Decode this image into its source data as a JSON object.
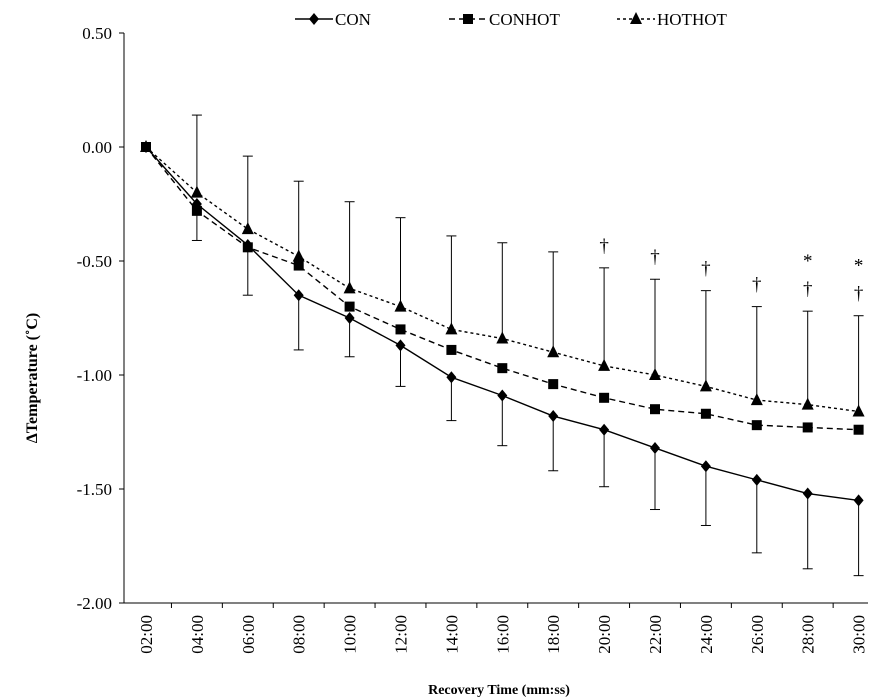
{
  "chart_data": {
    "type": "line",
    "xlabel": "Recovery Time (mm:ss)",
    "ylabel": "ΔTemperature (˚C)",
    "ylim": [
      -2.0,
      0.5
    ],
    "yticks": [
      "0.50",
      "0.00",
      "-0.50",
      "-1.00",
      "-1.50",
      "-2.00"
    ],
    "categories": [
      "02:00",
      "04:00",
      "06:00",
      "08:00",
      "10:00",
      "12:00",
      "14:00",
      "16:00",
      "18:00",
      "20:00",
      "22:00",
      "24:00",
      "26:00",
      "28:00",
      "30:00"
    ],
    "legend_position": "top",
    "series": [
      {
        "name": "CON",
        "marker": "diamond",
        "line": "solid",
        "values": [
          0.0,
          -0.25,
          -0.43,
          -0.65,
          -0.75,
          -0.87,
          -1.01,
          -1.09,
          -1.18,
          -1.24,
          -1.32,
          -1.4,
          -1.46,
          -1.52,
          -1.55
        ],
        "error_lower": [
          null,
          0.16,
          0.22,
          0.24,
          0.17,
          0.18,
          0.19,
          0.22,
          0.24,
          0.25,
          0.27,
          0.26,
          0.32,
          0.33,
          0.33
        ]
      },
      {
        "name": "CONHOT",
        "marker": "square",
        "line": "dashed",
        "values": [
          0.0,
          -0.28,
          -0.44,
          -0.52,
          -0.7,
          -0.8,
          -0.89,
          -0.97,
          -1.04,
          -1.1,
          -1.15,
          -1.17,
          -1.22,
          -1.23,
          -1.24
        ]
      },
      {
        "name": "HOTHOT",
        "marker": "triangle",
        "line": "dotted",
        "values": [
          0.0,
          -0.2,
          -0.36,
          -0.48,
          -0.62,
          -0.7,
          -0.8,
          -0.84,
          -0.9,
          -0.96,
          -1.0,
          -1.05,
          -1.11,
          -1.13,
          -1.16
        ],
        "error_upper": [
          null,
          0.34,
          0.32,
          0.33,
          0.38,
          0.39,
          0.41,
          0.42,
          0.44,
          0.43,
          0.42,
          0.42,
          0.41,
          0.41,
          0.42
        ]
      }
    ],
    "annotations": [
      {
        "category": "20:00",
        "symbols": [
          "†"
        ]
      },
      {
        "category": "22:00",
        "symbols": [
          "†"
        ]
      },
      {
        "category": "24:00",
        "symbols": [
          "†"
        ]
      },
      {
        "category": "26:00",
        "symbols": [
          "†"
        ]
      },
      {
        "category": "28:00",
        "symbols": [
          "*",
          "†"
        ]
      },
      {
        "category": "30:00",
        "symbols": [
          "*",
          "†"
        ]
      }
    ],
    "colors": {
      "line": "#000000",
      "marker": "#000000",
      "dagger": "#1a3a7a"
    }
  }
}
